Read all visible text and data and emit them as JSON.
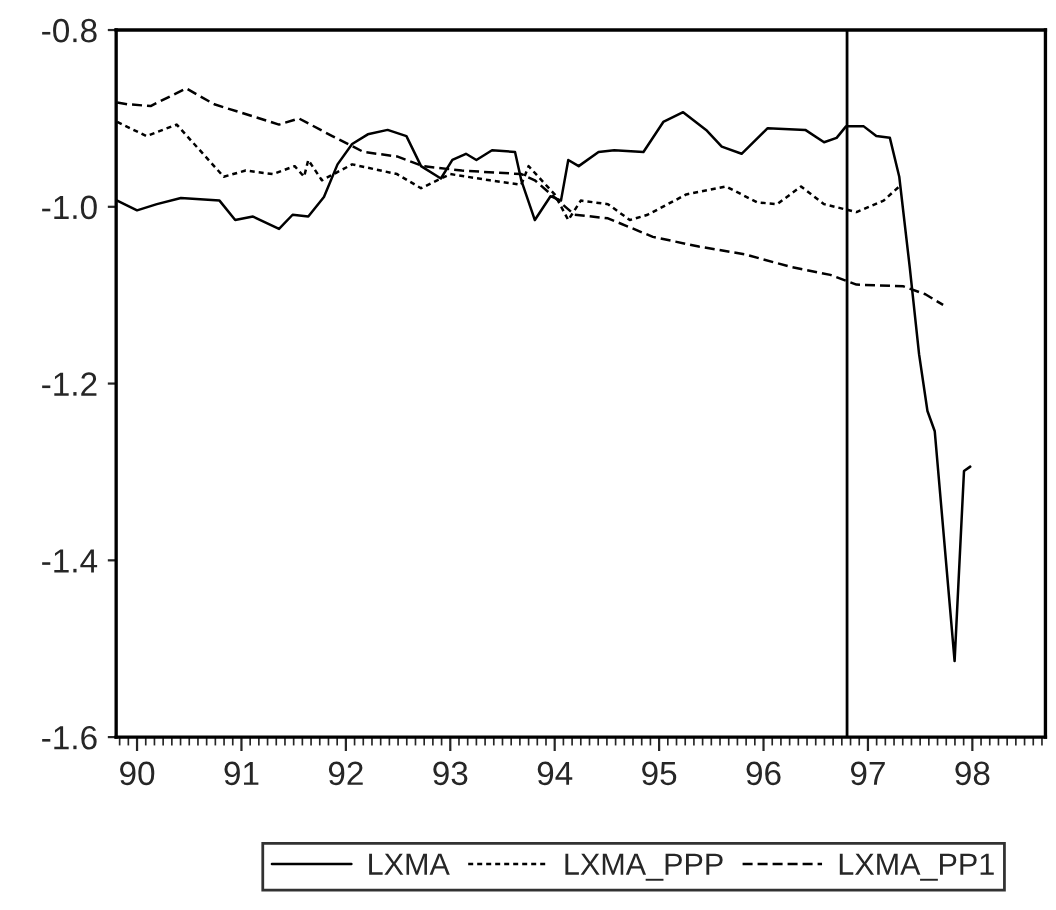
{
  "chart_data": {
    "type": "line",
    "xlim": [
      1989.8,
      1998.7
    ],
    "ylim": [
      -1.6,
      -0.8
    ],
    "xticks": [
      {
        "value": 1990,
        "label": "90"
      },
      {
        "value": 1991,
        "label": "91"
      },
      {
        "value": 1992,
        "label": "92"
      },
      {
        "value": 1993,
        "label": "93"
      },
      {
        "value": 1994,
        "label": "94"
      },
      {
        "value": 1995,
        "label": "95"
      },
      {
        "value": 1996,
        "label": "96"
      },
      {
        "value": 1997,
        "label": "97"
      },
      {
        "value": 1998,
        "label": "98"
      }
    ],
    "yticks": [
      -1.6,
      -1.4,
      -1.2,
      {
        "value": -1.0,
        "label": "-1.0"
      },
      -0.8
    ],
    "grid": false,
    "legend": "bottom",
    "marker": "none",
    "ref_lines": [
      {
        "axis": "x",
        "value": 1996.8,
        "color": "#000000",
        "line_style": "solid"
      }
    ],
    "series": [
      {
        "name": "LXMA",
        "color": "#000000",
        "line_style": "solid",
        "x": [
          1989.81,
          1990.0,
          1990.19,
          1990.42,
          1990.79,
          1990.94,
          1991.11,
          1991.36,
          1991.49,
          1991.64,
          1991.79,
          1991.92,
          1992.06,
          1992.21,
          1992.4,
          1992.58,
          1992.72,
          1992.91,
          1993.02,
          1993.15,
          1993.25,
          1993.4,
          1993.62,
          1993.68,
          1993.81,
          1993.96,
          1994.06,
          1994.13,
          1994.23,
          1994.42,
          1994.57,
          1994.85,
          1995.04,
          1995.23,
          1995.45,
          1995.6,
          1995.79,
          1996.04,
          1996.4,
          1996.58,
          1996.7,
          1996.79,
          1996.96,
          1997.08,
          1997.21,
          1997.3,
          1997.4,
          1997.49,
          1997.57,
          1997.64,
          1997.83,
          1997.92,
          1997.98
        ],
        "values": [
          -0.993,
          -1.004,
          -0.997,
          -0.99,
          -0.993,
          -1.015,
          -1.011,
          -1.025,
          -1.009,
          -1.011,
          -0.989,
          -0.952,
          -0.929,
          -0.918,
          -0.913,
          -0.92,
          -0.954,
          -0.968,
          -0.947,
          -0.94,
          -0.947,
          -0.936,
          -0.938,
          -0.97,
          -1.015,
          -0.988,
          -0.993,
          -0.947,
          -0.954,
          -0.938,
          -0.936,
          -0.938,
          -0.904,
          -0.893,
          -0.913,
          -0.932,
          -0.94,
          -0.911,
          -0.913,
          -0.927,
          -0.922,
          -0.909,
          -0.909,
          -0.92,
          -0.922,
          -0.966,
          -1.068,
          -1.167,
          -1.231,
          -1.254,
          -1.514,
          -1.299,
          -1.294
        ]
      },
      {
        "name": "LXMA_PPP",
        "color": "#000000",
        "line_style": "dotted",
        "x": [
          1989.81,
          1990.09,
          1990.38,
          1990.83,
          1991.04,
          1991.3,
          1991.51,
          1991.6,
          1991.64,
          1991.77,
          1992.06,
          1992.49,
          1992.72,
          1993.0,
          1993.38,
          1993.68,
          1993.75,
          1994.0,
          1994.13,
          1994.25,
          1994.51,
          1994.72,
          1994.89,
          1995.26,
          1995.64,
          1995.94,
          1996.13,
          1996.36,
          1996.58,
          1996.89,
          1997.15,
          1997.3
        ],
        "values": [
          -0.904,
          -0.92,
          -0.907,
          -0.966,
          -0.959,
          -0.963,
          -0.954,
          -0.966,
          -0.947,
          -0.97,
          -0.952,
          -0.963,
          -0.979,
          -0.963,
          -0.97,
          -0.975,
          -0.954,
          -0.986,
          -1.015,
          -0.993,
          -0.997,
          -1.015,
          -1.009,
          -0.986,
          -0.977,
          -0.995,
          -0.997,
          -0.977,
          -0.997,
          -1.006,
          -0.993,
          -0.977
        ]
      },
      {
        "name": "LXMA_PP1",
        "color": "#000000",
        "line_style": "dashed",
        "x": [
          1989.81,
          1989.91,
          1990.13,
          1990.47,
          1990.74,
          1991.36,
          1991.55,
          1991.87,
          1992.17,
          1992.49,
          1992.74,
          1993.11,
          1993.68,
          1993.81,
          1994.19,
          1994.51,
          1994.94,
          1995.38,
          1995.83,
          1996.26,
          1996.64,
          1996.89,
          1997.34,
          1997.55,
          1997.72
        ],
        "values": [
          -0.882,
          -0.884,
          -0.886,
          -0.866,
          -0.884,
          -0.907,
          -0.9,
          -0.92,
          -0.938,
          -0.943,
          -0.954,
          -0.959,
          -0.963,
          -0.97,
          -1.009,
          -1.013,
          -1.034,
          -1.045,
          -1.054,
          -1.068,
          -1.077,
          -1.088,
          -1.09,
          -1.099,
          -1.111
        ]
      }
    ]
  }
}
